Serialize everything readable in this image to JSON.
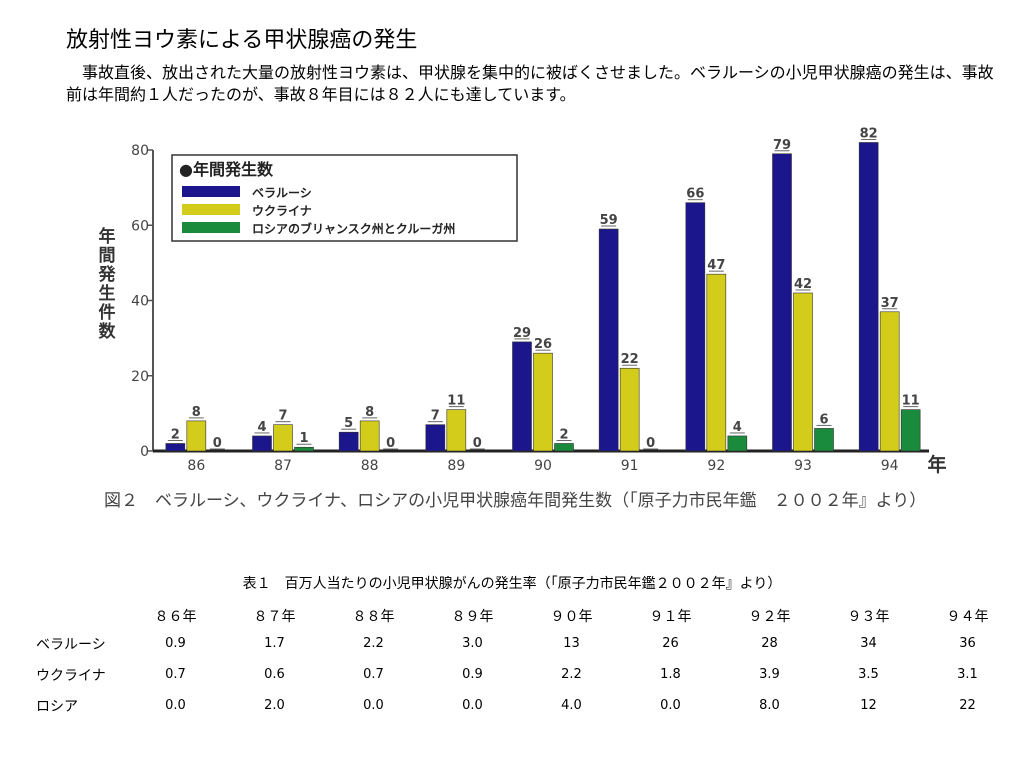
{
  "page": {
    "title": "放射性ヨウ素による甲状腺癌の発生",
    "intro": "事故直後、放出された大量の放射性ヨウ素は、甲状腺を集中的に被ばくさせました。ベラルーシの小児甲状腺癌の発生は、事故前は年間約１人だったのが、事故８年目には８２人にも達しています。"
  },
  "chart_data": {
    "type": "bar",
    "caption": "図２　ベラルーシ、ウクライナ、ロシアの小児甲状腺癌年間発生数（「原子力市民年鑑　２００２年』より）",
    "ylabel": "年間発生件数",
    "xlabel": "年",
    "legend_title": "●年間発生数",
    "legend_position": "top-left",
    "ylim": [
      0,
      80
    ],
    "yticks": [
      0,
      20,
      40,
      60,
      80
    ],
    "categories": [
      "86",
      "87",
      "88",
      "89",
      "90",
      "91",
      "92",
      "93",
      "94"
    ],
    "series": [
      {
        "name": "ベラルーシ",
        "color": "#1c168c",
        "values": [
          2,
          4,
          5,
          7,
          29,
          59,
          66,
          79,
          82
        ]
      },
      {
        "name": "ウクライナ",
        "color": "#d4cc1a",
        "values": [
          8,
          7,
          8,
          11,
          26,
          22,
          47,
          42,
          37
        ]
      },
      {
        "name": "ロシアのブリャンスク州とクルーガ州",
        "color": "#1a8a3c",
        "values": [
          0,
          1,
          0,
          0,
          2,
          0,
          4,
          6,
          11
        ]
      }
    ]
  },
  "table": {
    "caption": "表１　百万人当たりの小児甲状腺がんの発生率（「原子力市民年鑑２００２年』より）",
    "columns": [
      "８６年",
      "８７年",
      "８８年",
      "８９年",
      "９０年",
      "９１年",
      "９２年",
      "９３年",
      "９４年"
    ],
    "rows": [
      {
        "label": "ベラルーシ",
        "values": [
          "0.9",
          "1.7",
          "2.2",
          "3.0",
          "13",
          "26",
          "28",
          "34",
          "36"
        ]
      },
      {
        "label": "ウクライナ",
        "values": [
          "0.7",
          "0.6",
          "0.7",
          "0.9",
          "2.2",
          "1.8",
          "3.9",
          "3.5",
          "3.1"
        ]
      },
      {
        "label": "ロシア",
        "values": [
          "0.0",
          "2.0",
          "0.0",
          "0.0",
          "4.0",
          "0.0",
          "8.0",
          "12",
          "22"
        ]
      }
    ]
  }
}
